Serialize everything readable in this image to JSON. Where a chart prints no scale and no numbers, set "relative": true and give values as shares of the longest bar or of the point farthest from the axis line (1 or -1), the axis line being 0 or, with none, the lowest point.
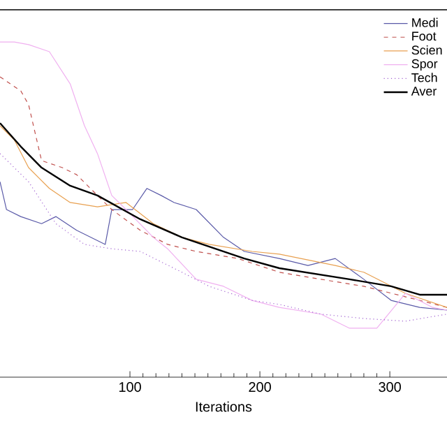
{
  "chart_data": {
    "type": "line",
    "xlabel": "Iterations",
    "relative": true,
    "xlim": [
      0,
      344
    ],
    "xticks": [
      100,
      200,
      300
    ],
    "legend": "top right",
    "grid": false,
    "series": [
      {
        "name": "Medi",
        "color": "#5a5aa8",
        "line_style": "solid",
        "x": [
          0,
          5,
          16,
          32,
          43,
          59,
          81,
          86,
          102,
          113,
          124,
          134,
          151,
          172,
          188,
          215,
          237,
          258,
          280,
          301,
          323,
          344
        ],
        "values": [
          0.583,
          0.5,
          0.479,
          0.458,
          0.479,
          0.438,
          0.396,
          0.5,
          0.5,
          0.563,
          0.542,
          0.521,
          0.5,
          0.417,
          0.375,
          0.354,
          0.333,
          0.354,
          0.292,
          0.229,
          0.208,
          0.2
        ]
      },
      {
        "name": "Foot",
        "color": "#c0504d",
        "line_style": "dashed",
        "x": [
          0,
          16,
          22,
          27,
          32,
          48,
          59,
          75,
          86,
          108,
          129,
          151,
          183,
          215,
          247,
          280,
          323,
          344
        ],
        "values": [
          0.896,
          0.854,
          0.813,
          0.729,
          0.646,
          0.625,
          0.604,
          0.542,
          0.5,
          0.438,
          0.396,
          0.375,
          0.354,
          0.313,
          0.292,
          0.271,
          0.229,
          0.208
        ]
      },
      {
        "name": "Scien",
        "color": "#e8a050",
        "line_style": "solid",
        "x": [
          0,
          11,
          22,
          38,
          54,
          75,
          97,
          118,
          140,
          161,
          194,
          215,
          258,
          280,
          312,
          344
        ],
        "values": [
          0.75,
          0.708,
          0.625,
          0.563,
          0.521,
          0.508,
          0.521,
          0.458,
          0.417,
          0.396,
          0.375,
          0.367,
          0.333,
          0.313,
          0.25,
          0.208
        ]
      },
      {
        "name": "Spor",
        "color": "#f0b0f0",
        "line_style": "solid",
        "x": [
          0,
          11,
          22,
          38,
          54,
          65,
          75,
          86,
          97,
          118,
          129,
          151,
          172,
          194,
          215,
          247,
          269,
          290,
          312,
          333,
          344
        ],
        "values": [
          1.0,
          1.0,
          0.992,
          0.971,
          0.875,
          0.75,
          0.667,
          0.542,
          0.5,
          0.417,
          0.383,
          0.292,
          0.271,
          0.229,
          0.208,
          0.188,
          0.146,
          0.146,
          0.25,
          0.208,
          0.2
        ]
      },
      {
        "name": "Tech",
        "color": "#a060d0",
        "line_style": "dotted",
        "x": [
          0,
          22,
          43,
          65,
          86,
          108,
          140,
          161,
          194,
          215,
          247,
          280,
          312,
          344
        ],
        "values": [
          0.667,
          0.583,
          0.458,
          0.396,
          0.383,
          0.375,
          0.313,
          0.271,
          0.229,
          0.217,
          0.188,
          0.175,
          0.167,
          0.188
        ]
      },
      {
        "name": "Aver",
        "color": "#000000",
        "line_style": "solid",
        "x": [
          0,
          16,
          32,
          54,
          75,
          108,
          140,
          188,
          215,
          269,
          301,
          323,
          344
        ],
        "values": [
          0.758,
          0.688,
          0.625,
          0.571,
          0.542,
          0.471,
          0.417,
          0.354,
          0.325,
          0.292,
          0.271,
          0.246,
          0.246
        ]
      }
    ]
  }
}
